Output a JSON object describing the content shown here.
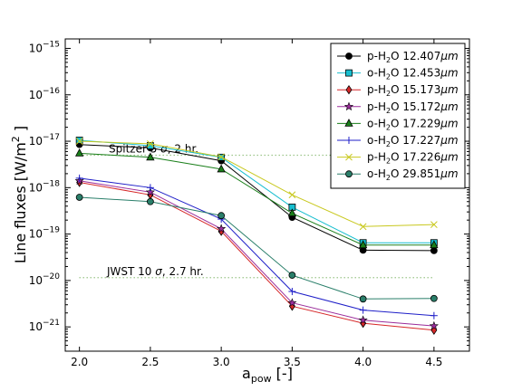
{
  "chart_data": {
    "type": "line",
    "xlabel": "a",
    "xlabel_subscript": "pow",
    "xlabel_suffix": "[-]",
    "ylabel": "Line fluxes [W/m",
    "ylabel_sup": "2",
    "ylabel_suffix": "]",
    "y_scale": "log",
    "xlim": [
      1.9,
      4.75
    ],
    "ylim": [
      3e-22,
      1.6e-15
    ],
    "x_ticks": [
      "2.0",
      "2.5",
      "3.0",
      "3.5",
      "4.0",
      "4.5"
    ],
    "x_tick_values": [
      2.0,
      2.5,
      3.0,
      3.5,
      4.0,
      4.5
    ],
    "y_tick_exponents": [
      -21,
      -20,
      -19,
      -18,
      -17,
      -16,
      -15
    ],
    "y_tick_base": "10",
    "legend_placement": "top-right",
    "x": [
      2.0,
      2.5,
      3.0,
      3.5,
      4.0,
      4.5
    ],
    "series": [
      {
        "label": "p-H",
        "sub": "2",
        "rest": "O 12.407",
        "unit": "μm",
        "color": "#000000",
        "marker": "circle",
        "values": [
          8.5e-18,
          7.2e-18,
          3.8e-18,
          2.3e-19,
          4.5e-20,
          4.4e-20
        ]
      },
      {
        "label": "o-H",
        "sub": "2",
        "rest": "O 12.453",
        "unit": "μm",
        "color": "#17becf",
        "marker": "square",
        "values": [
          1.05e-17,
          8e-18,
          4.5e-18,
          3.8e-19,
          6.5e-20,
          6.5e-20
        ]
      },
      {
        "label": "p-H",
        "sub": "2",
        "rest": "O 15.173",
        "unit": "μm",
        "color": "#d62728",
        "marker": "diamond",
        "values": [
          1.3e-18,
          7e-19,
          1.15e-19,
          2.8e-21,
          1.2e-21,
          8.5e-22
        ]
      },
      {
        "label": "p-H",
        "sub": "2",
        "rest": "O 15.172",
        "unit": "μm",
        "color": "#9b2d9b",
        "marker": "star",
        "values": [
          1.4e-18,
          8e-19,
          1.3e-19,
          3.3e-21,
          1.4e-21,
          1.05e-21
        ]
      },
      {
        "label": "o-H",
        "sub": "2",
        "rest": "O 17.229",
        "unit": "μm",
        "color": "#1a7f1a",
        "marker": "triangle",
        "values": [
          5.5e-18,
          4.5e-18,
          2.5e-18,
          2.8e-19,
          5.8e-20,
          5.8e-20
        ]
      },
      {
        "label": "o-H",
        "sub": "2",
        "rest": "O 17.227",
        "unit": "μm",
        "color": "#1f1fc8",
        "marker": "plus",
        "values": [
          1.6e-18,
          1e-18,
          2.1e-19,
          5.8e-21,
          2.3e-21,
          1.75e-21
        ]
      },
      {
        "label": "p-H",
        "sub": "2",
        "rest": "O 17.226",
        "unit": "μm",
        "color": "#c8c81e",
        "marker": "x",
        "values": [
          1e-17,
          8.8e-18,
          4.6e-18,
          7e-19,
          1.45e-19,
          1.6e-19
        ]
      },
      {
        "label": "o-H",
        "sub": "2",
        "rest": "O 29.851",
        "unit": "μm",
        "color": "#2a7f6a",
        "marker": "circle",
        "values": [
          6.2e-19,
          5e-19,
          2.5e-19,
          1.3e-20,
          4e-21,
          4.1e-21
        ]
      }
    ],
    "reference_lines": [
      {
        "name": "Spitzer",
        "label_prefix": "Spitzer 5 ",
        "label_sigma": "σ",
        "label_suffix": ", 2 hr.",
        "y": 5e-18,
        "x_range": [
          2.0,
          4.5
        ],
        "color": "#6aa84f"
      },
      {
        "name": "JWST",
        "label_prefix": "JWST 10 ",
        "label_sigma": "σ",
        "label_suffix": ", 2.7 hr.",
        "y": 1.15e-20,
        "x_range": [
          2.0,
          4.5
        ],
        "color": "#6aa84f"
      }
    ]
  }
}
